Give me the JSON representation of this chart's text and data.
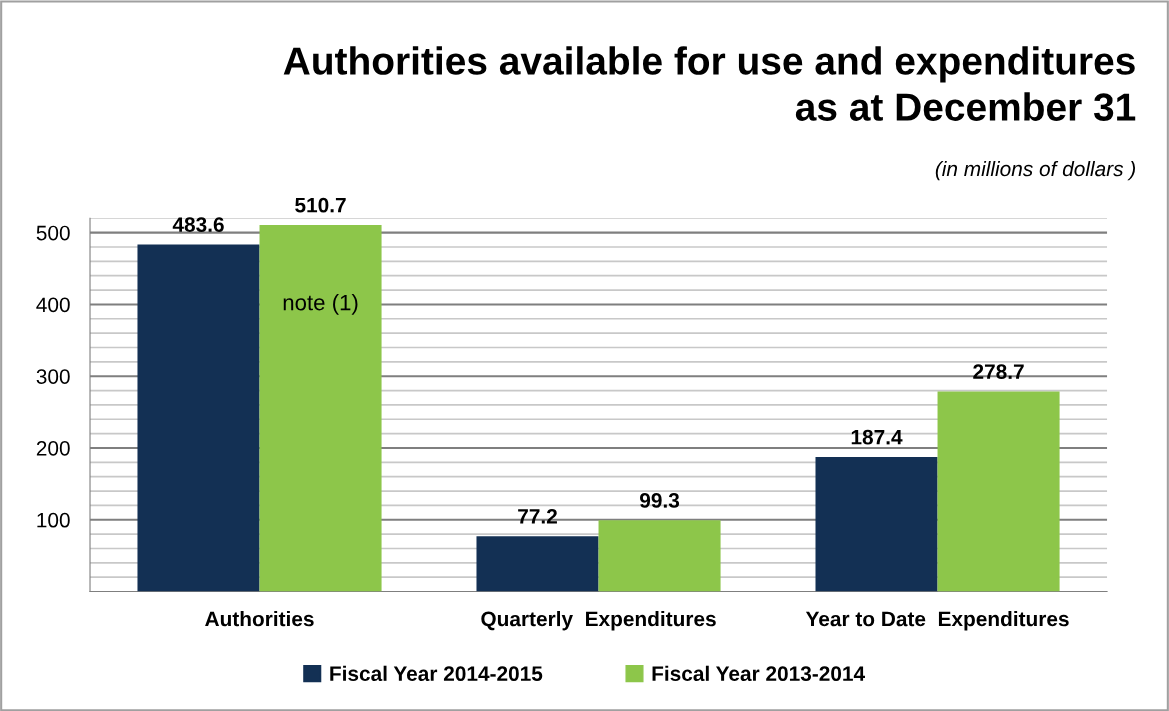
{
  "chart_data": {
    "type": "bar",
    "title": "Authorities available for use and expenditures\nas at December 31",
    "subtitle": "(in millions of dollars )",
    "categories": [
      "Authorities",
      "Quarterly  Expenditures",
      "Year to Date  Expenditures"
    ],
    "series": [
      {
        "name": "Fiscal Year 2014-2015",
        "color": "#133054",
        "values": [
          483.6,
          77.2,
          187.4
        ]
      },
      {
        "name": "Fiscal Year 2013-2014",
        "color": "#8dc64a",
        "values": [
          510.7,
          99.3,
          278.7
        ]
      }
    ],
    "ylim": [
      0,
      520
    ],
    "yticks": [
      {
        "value": 20,
        "label": null
      },
      {
        "value": 40,
        "label": null
      },
      {
        "value": 60,
        "label": null
      },
      {
        "value": 80,
        "label": null
      },
      100,
      {
        "value": 120,
        "label": null
      },
      {
        "value": 140,
        "label": null
      },
      {
        "value": 160,
        "label": null
      },
      {
        "value": 180,
        "label": null
      },
      200,
      {
        "value": 220,
        "label": null
      },
      {
        "value": 240,
        "label": null
      },
      {
        "value": 260,
        "label": null
      },
      {
        "value": 280,
        "label": null
      },
      300,
      {
        "value": 320,
        "label": null
      },
      {
        "value": 340,
        "label": null
      },
      {
        "value": 360,
        "label": null
      },
      {
        "value": 380,
        "label": null
      },
      400,
      {
        "value": 420,
        "label": null
      },
      {
        "value": 440,
        "label": null
      },
      {
        "value": 460,
        "label": null
      },
      {
        "value": 480,
        "label": null
      },
      500,
      {
        "value": 520,
        "label": null
      }
    ],
    "annotations": [
      {
        "text": "note (1)",
        "x": "Authorities",
        "y": 400
      }
    ],
    "data_labels": true,
    "grid": "y",
    "legend": "bottom"
  }
}
